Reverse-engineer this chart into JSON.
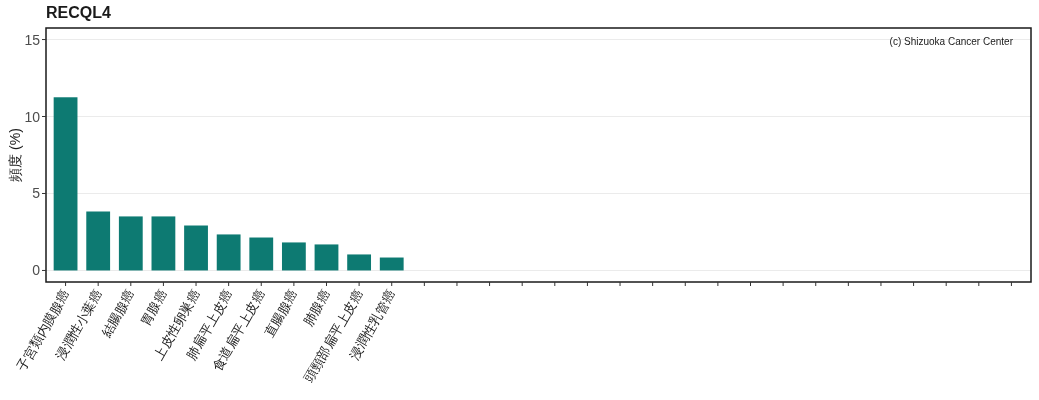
{
  "chart_data": {
    "type": "bar",
    "title": "RECQL4",
    "ylabel": "頻度 (%)",
    "annotations": [
      "(c) Shizuoka Cancer Center"
    ],
    "categories": [
      "子宮類内膜腺癌",
      "浸潤性小葉癌",
      "結腸腺癌",
      "胃腺癌",
      "上皮性卵巣癌",
      "肺扁平上皮癌",
      "食道扁平上皮癌",
      "直腸腺癌",
      "肺腺癌",
      "頭頸部扁平上皮癌",
      "浸潤性乳管癌",
      null,
      null,
      null,
      null,
      null,
      null,
      null,
      null,
      null,
      null,
      null,
      null,
      null,
      null,
      null,
      null,
      null,
      null,
      null
    ],
    "values": [
      11.25,
      3.83,
      3.51,
      3.51,
      2.92,
      2.34,
      2.14,
      1.82,
      1.69,
      1.04,
      0.84,
      null,
      null,
      null,
      null,
      null,
      null,
      null,
      null,
      null,
      null,
      null,
      null,
      null,
      null,
      null,
      null,
      null,
      null,
      null
    ],
    "color": "#0d7a72",
    "ylim": [
      -0.75,
      15.75
    ],
    "yticks": [
      0,
      5,
      10,
      15
    ],
    "grid": "y"
  }
}
